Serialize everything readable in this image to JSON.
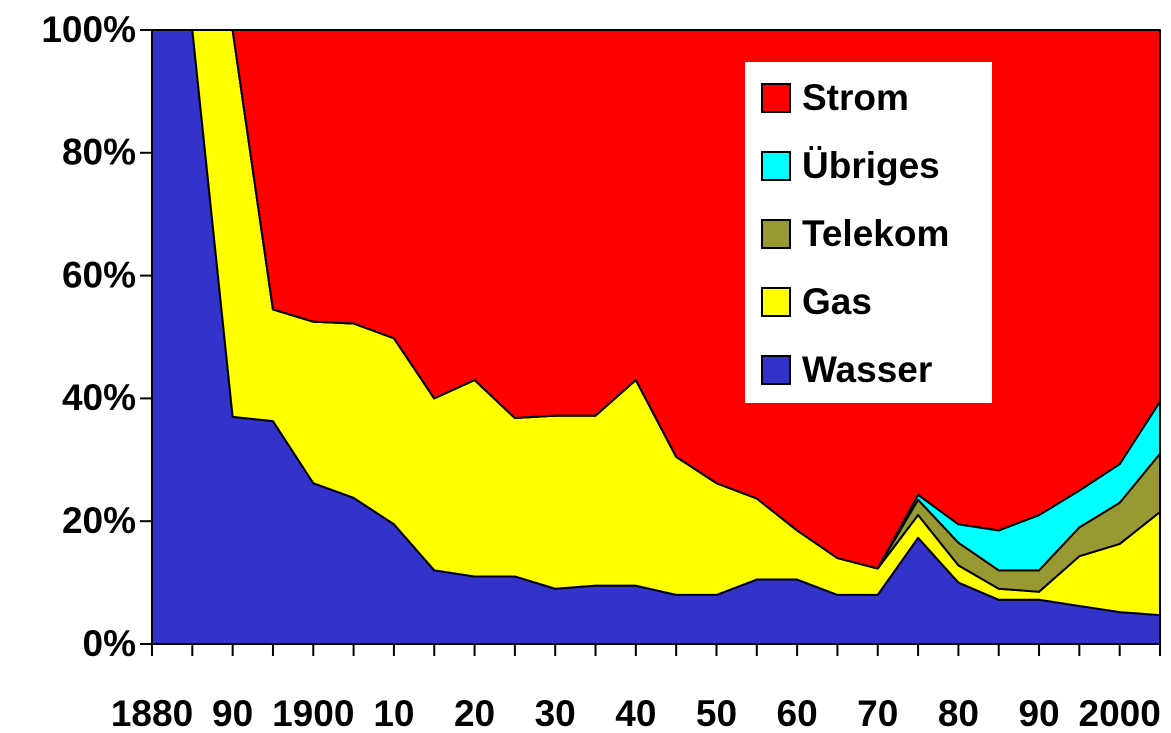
{
  "chart_data": {
    "type": "stacked_area",
    "categories": [
      "1880",
      null,
      "90",
      null,
      "1900",
      null,
      "10",
      null,
      "20",
      null,
      "30",
      null,
      "40",
      null,
      "50",
      null,
      "60",
      null,
      "70",
      null,
      "80",
      null,
      "90",
      null,
      "2000",
      null
    ],
    "series": [
      {
        "name": "Wasser",
        "color": "#3333cc",
        "values": [
          100,
          100,
          37,
          36.3,
          26.2,
          23.8,
          19.5,
          12,
          11,
          11,
          9,
          9.5,
          9.5,
          8,
          8,
          10.5,
          10.5,
          8,
          8,
          17.3,
          10,
          7.2,
          7.2,
          6.2,
          5.2,
          4.7
        ]
      },
      {
        "name": "Gas",
        "color": "#ffff00",
        "values": [
          0,
          0,
          63,
          18.2,
          26.3,
          28.4,
          30.3,
          28,
          32,
          25.8,
          28.2,
          27.7,
          33.5,
          22.5,
          18.2,
          13.2,
          8,
          6,
          4.3,
          3.7,
          2.8,
          1.8,
          1.3,
          8.1,
          11.1,
          16.8
        ]
      },
      {
        "name": "Telekom",
        "color": "#999933",
        "values": [
          0,
          0,
          0,
          0,
          0,
          0,
          0,
          0,
          0,
          0,
          0,
          0,
          0,
          0,
          0,
          0,
          0,
          0,
          0,
          2.5,
          3.7,
          3,
          3.5,
          4.7,
          6.7,
          9.5
        ]
      },
      {
        "name": "Übriges",
        "color": "#00ffff",
        "values": [
          0,
          0,
          0,
          0,
          0,
          0,
          0,
          0,
          0,
          0,
          0,
          0,
          0,
          0,
          0,
          0,
          0,
          0,
          0,
          0.8,
          3,
          6.5,
          9,
          6,
          6.3,
          8.5
        ]
      },
      {
        "name": "Strom",
        "color": "#ff0000",
        "values": [
          0,
          0,
          0,
          45.5,
          47.5,
          47.8,
          50.2,
          60,
          57,
          63.2,
          62.8,
          62.8,
          57,
          69.5,
          73.8,
          76.3,
          81.5,
          86,
          87.7,
          75.7,
          80.5,
          81.5,
          79,
          75,
          70.7,
          60.5
        ]
      }
    ],
    "ylim": [
      0,
      100
    ],
    "yticks": [
      {
        "value": 0,
        "label": "0%"
      },
      {
        "value": 20,
        "label": "20%"
      },
      {
        "value": 40,
        "label": "40%"
      },
      {
        "value": 60,
        "label": "60%"
      },
      {
        "value": 80,
        "label": "80%"
      },
      {
        "value": 100,
        "label": "100%"
      }
    ],
    "legend": "top-right"
  }
}
